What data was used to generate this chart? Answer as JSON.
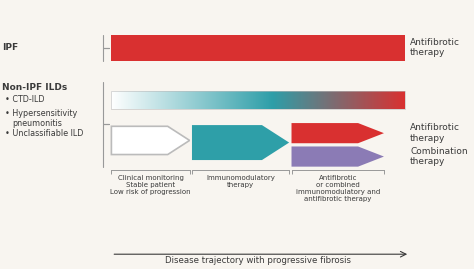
{
  "bg_color": "#f8f5f0",
  "ipf_label": "IPF",
  "non_ipf_label": "Non-IPF ILDs",
  "non_ipf_bullets": [
    "• CTD-ILD",
    "• Hypersensitivity\n  pneumonitis",
    "• Unclassifiable ILD"
  ],
  "antifibrotic_label_ipf": "Antifibrotic\ntherapy",
  "antifibrotic_label": "Antifibrotic\ntherapy",
  "combination_label": "Combination\ntherapy",
  "red_color": "#d93030",
  "teal_color": "#2e9fa8",
  "purple_color": "#8b7bb5",
  "gray_color": "#999999",
  "bottom_labels": [
    "Clinical monitoring\nStable patient\nLow risk of progression",
    "Immunomodulatory\ntherapy",
    "Antifibrotic\nor combined\nimmunomodulatory and\nantifibrotic therapy"
  ],
  "bottom_axis_label": "Disease trajectory with progressive fibrosis",
  "text_color": "#3a3a3a",
  "label_fontsize": 6.5,
  "small_fontsize": 5.8,
  "axis_label_fontsize": 6.2
}
